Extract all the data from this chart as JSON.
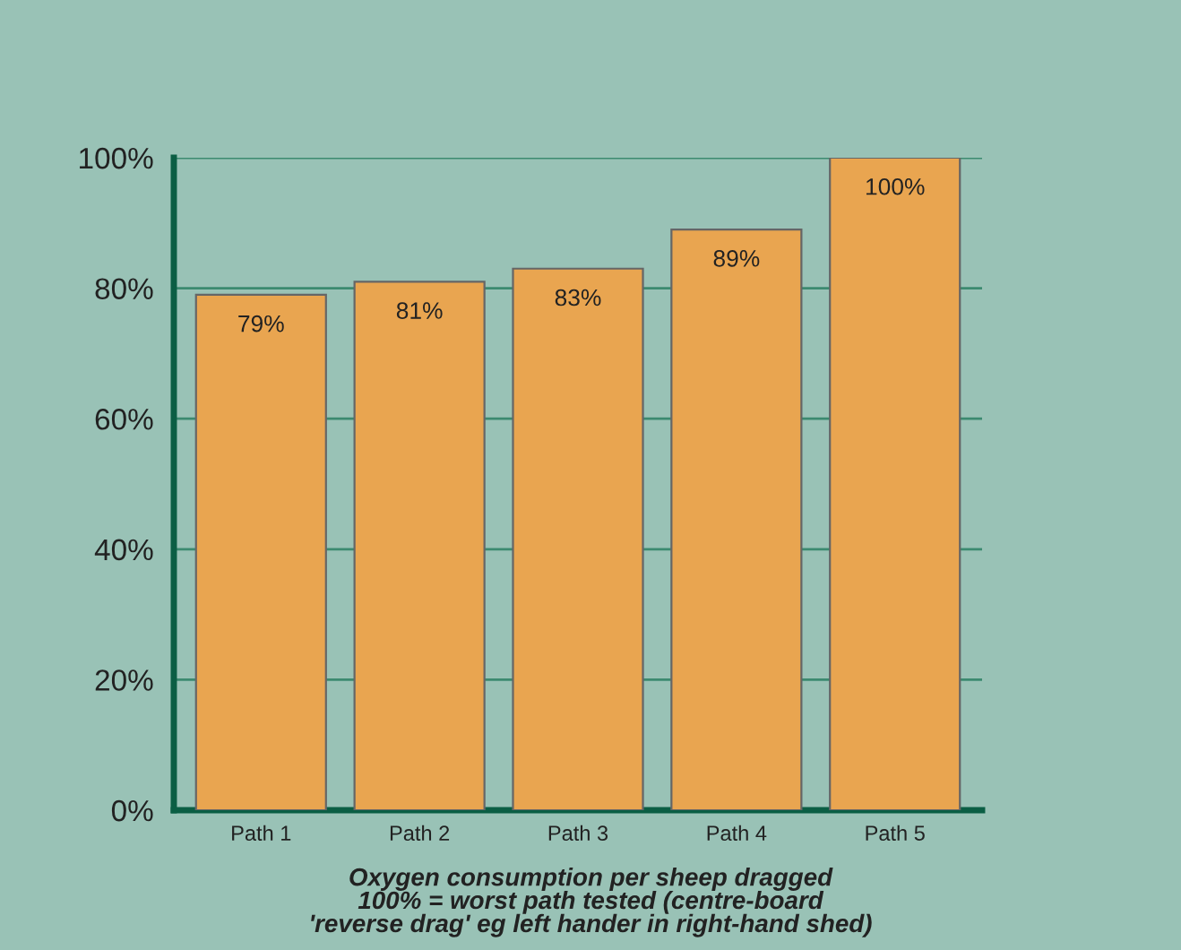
{
  "chart_data": {
    "type": "bar",
    "categories": [
      "Path 1",
      "Path 2",
      "Path 3",
      "Path 4",
      "Path 5"
    ],
    "values": [
      79,
      81,
      83,
      89,
      100
    ],
    "color": "#e9a550",
    "value_labels": [
      "79%",
      "81%",
      "83%",
      "89%",
      "100%"
    ],
    "ylim": [
      0,
      100
    ],
    "yticks": [
      {
        "value": 0,
        "label": "0%"
      },
      {
        "value": 20,
        "label": "20%"
      },
      {
        "value": 40,
        "label": "40%"
      },
      {
        "value": 60,
        "label": "60%"
      },
      {
        "value": 80,
        "label": "80%"
      },
      {
        "value": 100,
        "label": "100%"
      }
    ],
    "grid": "y",
    "legend": false,
    "annotations": [
      "Oxygen consumption per sheep dragged\n100% = worst path tested (centre-board\n'reverse drag' eg left hander in right-hand shed)"
    ]
  }
}
